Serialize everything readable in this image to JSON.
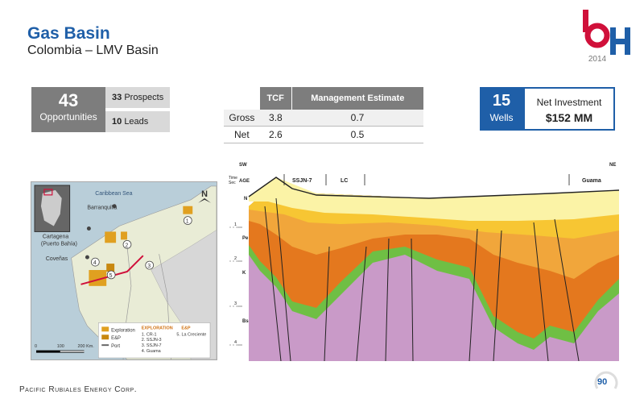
{
  "header": {
    "title": "Gas Basin",
    "subtitle": "Colombia – LMV Basin"
  },
  "logo": {
    "year": "2014",
    "colors": {
      "red": "#d0103a",
      "blue": "#1f5fa8"
    }
  },
  "opportunities": {
    "count": "43",
    "label": "Opportunities",
    "prospects_count": "33",
    "prospects_label": "Prospects",
    "leads_count": "10",
    "leads_label": "Leads"
  },
  "tcf_table": {
    "headers": [
      "TCF",
      "Management Estimate"
    ],
    "rows": [
      {
        "label": "Gross",
        "tcf": "3.8",
        "estimate": "0.7"
      },
      {
        "label": "Net",
        "tcf": "2.6",
        "estimate": "0.5"
      }
    ]
  },
  "wells": {
    "count": "15",
    "label": "Wells"
  },
  "investment": {
    "label": "Net Investment",
    "value": "$152 MM"
  },
  "map": {
    "sea_label": "Caribbean Sea",
    "north": "N",
    "cities": [
      "Barranquilla",
      "Cartagena",
      "(Puerto Bahía)",
      "Coveñas"
    ],
    "markers": [
      "1",
      "2",
      "3",
      "4",
      "5"
    ],
    "legend": {
      "exploration": "Exploration",
      "ep": "E&P",
      "port": "Port",
      "exploration_header": "EXPLORATION",
      "ep_header": "E&P",
      "items": [
        "1. CR-1",
        "2. SSJN-3",
        "3. SSJN-7",
        "4. Guama"
      ],
      "ep_items": [
        "5. La Creciente"
      ]
    },
    "scale": [
      "0",
      "100",
      "200 Km."
    ]
  },
  "cross_section": {
    "left_dir": "SW",
    "right_dir": "NE",
    "time_label_1": "Time",
    "time_label_2": "Sec",
    "age_label": "AGE",
    "wells": [
      "SSJN-7",
      "LC",
      "Guama"
    ],
    "ages": [
      "N",
      "Pe",
      "K",
      "Bs"
    ],
    "time_ticks": [
      "1",
      "2",
      "3",
      "4"
    ],
    "colors": {
      "n": "#fbf3a6",
      "pe_light": "#f7c633",
      "pe": "#f1a63b",
      "pe_dark": "#e4781e",
      "k": "#6fbf44",
      "bs": "#c99ac8"
    }
  },
  "footer": {
    "company": "Pacific Rubiales Energy Corp.",
    "page": "90"
  }
}
